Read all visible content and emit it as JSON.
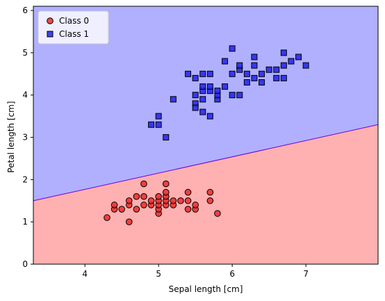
{
  "chart_data": {
    "type": "scatter",
    "title": "",
    "xlabel": "Sepal length [cm]",
    "ylabel": "Petal length [cm]",
    "xlim": [
      3.3,
      7.98
    ],
    "ylim": [
      0,
      6.1
    ],
    "xticks": [
      4,
      5,
      6,
      7
    ],
    "yticks": [
      0,
      1,
      2,
      3,
      4,
      5,
      6
    ],
    "grid": false,
    "legend_placement": "top-left",
    "decision_boundary": {
      "points": [
        [
          3.3,
          1.5
        ],
        [
          7.98,
          3.3
        ]
      ],
      "region_below_color": "#ffb0b0",
      "region_above_color": "#b0b0ff",
      "line_color": "#6a00d8"
    },
    "series": [
      {
        "name": "Class 0",
        "marker": "circle",
        "color": "#ef2b2b",
        "edge_color": "#000000",
        "points": [
          [
            4.3,
            1.1
          ],
          [
            4.4,
            1.3
          ],
          [
            4.4,
            1.4
          ],
          [
            4.5,
            1.3
          ],
          [
            4.6,
            1.0
          ],
          [
            4.6,
            1.4
          ],
          [
            4.6,
            1.5
          ],
          [
            4.7,
            1.3
          ],
          [
            4.7,
            1.6
          ],
          [
            4.8,
            1.4
          ],
          [
            4.8,
            1.6
          ],
          [
            4.8,
            1.9
          ],
          [
            4.9,
            1.4
          ],
          [
            4.9,
            1.5
          ],
          [
            5.0,
            1.2
          ],
          [
            5.0,
            1.3
          ],
          [
            5.0,
            1.4
          ],
          [
            5.0,
            1.5
          ],
          [
            5.0,
            1.6
          ],
          [
            5.1,
            1.4
          ],
          [
            5.1,
            1.5
          ],
          [
            5.1,
            1.6
          ],
          [
            5.1,
            1.7
          ],
          [
            5.1,
            1.9
          ],
          [
            5.2,
            1.4
          ],
          [
            5.2,
            1.5
          ],
          [
            5.3,
            1.5
          ],
          [
            5.4,
            1.3
          ],
          [
            5.4,
            1.5
          ],
          [
            5.4,
            1.7
          ],
          [
            5.5,
            1.3
          ],
          [
            5.5,
            1.4
          ],
          [
            5.7,
            1.5
          ],
          [
            5.7,
            1.7
          ],
          [
            5.8,
            1.2
          ]
        ]
      },
      {
        "name": "Class 1",
        "marker": "square",
        "color": "#2222ee",
        "edge_color": "#000000",
        "points": [
          [
            4.9,
            3.3
          ],
          [
            5.0,
            3.3
          ],
          [
            5.0,
            3.5
          ],
          [
            5.1,
            3.0
          ],
          [
            5.2,
            3.9
          ],
          [
            5.4,
            4.5
          ],
          [
            5.5,
            3.8
          ],
          [
            5.5,
            3.7
          ],
          [
            5.5,
            4.0
          ],
          [
            5.5,
            4.4
          ],
          [
            5.6,
            3.6
          ],
          [
            5.6,
            3.9
          ],
          [
            5.6,
            4.1
          ],
          [
            5.6,
            4.2
          ],
          [
            5.6,
            4.5
          ],
          [
            5.7,
            3.5
          ],
          [
            5.7,
            4.1
          ],
          [
            5.7,
            4.2
          ],
          [
            5.7,
            4.5
          ],
          [
            5.8,
            3.9
          ],
          [
            5.8,
            4.0
          ],
          [
            5.8,
            4.1
          ],
          [
            5.9,
            4.2
          ],
          [
            5.9,
            4.8
          ],
          [
            6.0,
            4.0
          ],
          [
            6.0,
            4.5
          ],
          [
            6.0,
            5.1
          ],
          [
            6.1,
            4.0
          ],
          [
            6.1,
            4.6
          ],
          [
            6.1,
            4.7
          ],
          [
            6.2,
            4.3
          ],
          [
            6.2,
            4.5
          ],
          [
            6.3,
            4.4
          ],
          [
            6.3,
            4.7
          ],
          [
            6.3,
            4.9
          ],
          [
            6.4,
            4.3
          ],
          [
            6.4,
            4.5
          ],
          [
            6.5,
            4.6
          ],
          [
            6.6,
            4.4
          ],
          [
            6.6,
            4.6
          ],
          [
            6.7,
            4.4
          ],
          [
            6.7,
            4.7
          ],
          [
            6.7,
            5.0
          ],
          [
            6.8,
            4.8
          ],
          [
            6.9,
            4.9
          ],
          [
            7.0,
            4.7
          ]
        ]
      }
    ]
  }
}
